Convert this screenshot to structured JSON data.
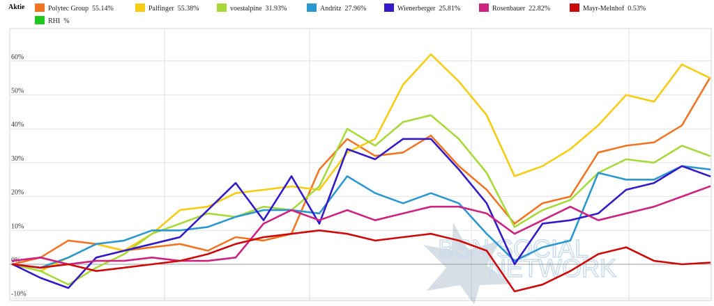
{
  "legend": {
    "title": "Aktie",
    "items": [
      {
        "name": "Polytec Group",
        "value": "55.14%",
        "color": "#f07422"
      },
      {
        "name": "Palfinger",
        "value": "55.38%",
        "color": "#f5cc12"
      },
      {
        "name": "voestalpine",
        "value": "31.93%",
        "color": "#a7d93a"
      },
      {
        "name": "Andritz",
        "value": "27.96%",
        "color": "#2b97d1"
      },
      {
        "name": "Wienerberger",
        "value": "25.81%",
        "color": "#3319c7"
      },
      {
        "name": "Rosenbauer",
        "value": "22.82%",
        "color": "#cc2280"
      },
      {
        "name": "Mayr-Melnhof",
        "value": "0.53%",
        "color": "#cc0a0a"
      },
      {
        "name": "RHI",
        "value": "%",
        "color": "#1fc81f"
      }
    ]
  },
  "watermark": {
    "line1": "BSN SOCIAL",
    "line2": "NETWORK"
  },
  "chart_data": {
    "type": "line",
    "ylim": [
      -10,
      70
    ],
    "yticks": [
      -10,
      0,
      10,
      20,
      30,
      40,
      50,
      60
    ],
    "ytick_labels": [
      "-10%",
      "0%",
      "10%",
      "20%",
      "30%",
      "40%",
      "50%",
      "60%"
    ],
    "grid": true,
    "legend_position": "top",
    "series": [
      {
        "name": "Polytec Group",
        "color": "#f07422",
        "x": [
          0,
          4,
          8,
          12,
          16,
          20,
          24,
          28,
          32,
          36,
          40,
          44,
          48,
          52,
          56,
          60,
          64,
          68,
          72,
          76,
          80,
          84,
          88,
          92,
          96,
          100
        ],
        "values": [
          0,
          2,
          7,
          6,
          4,
          5,
          6,
          4,
          8,
          7,
          9,
          28,
          37,
          32,
          33,
          38,
          29,
          22,
          12,
          18,
          20,
          33,
          35,
          36,
          41,
          55
        ]
      },
      {
        "name": "Palfinger",
        "color": "#f5cc12",
        "x": [
          0,
          4,
          8,
          12,
          16,
          20,
          24,
          28,
          32,
          36,
          40,
          44,
          48,
          52,
          56,
          60,
          64,
          68,
          72,
          76,
          80,
          84,
          88,
          92,
          96,
          100
        ],
        "values": [
          0,
          -2,
          2,
          6,
          4,
          9,
          16,
          17,
          21,
          22,
          23,
          22,
          33,
          37,
          53,
          62,
          54,
          44,
          26,
          29,
          34,
          41,
          50,
          48,
          59,
          55
        ]
      },
      {
        "name": "voestalpine",
        "color": "#a7d93a",
        "x": [
          0,
          4,
          8,
          12,
          16,
          20,
          24,
          28,
          32,
          36,
          40,
          44,
          48,
          52,
          56,
          60,
          64,
          68,
          72,
          76,
          80,
          84,
          88,
          92,
          96,
          100
        ],
        "values": [
          0,
          -2,
          -6,
          -1,
          3,
          9,
          12,
          15,
          14,
          17,
          16,
          23,
          40,
          35,
          42,
          44,
          37,
          27,
          11,
          16,
          19,
          27,
          31,
          30,
          35,
          32
        ]
      },
      {
        "name": "Andritz",
        "color": "#2b97d1",
        "x": [
          0,
          4,
          8,
          12,
          16,
          20,
          24,
          28,
          32,
          36,
          40,
          44,
          48,
          52,
          56,
          60,
          64,
          68,
          72,
          76,
          80,
          84,
          88,
          92,
          96,
          100
        ],
        "values": [
          0,
          -1,
          2,
          6,
          7,
          10,
          10,
          11,
          14,
          16,
          16,
          15,
          26,
          21,
          18,
          21,
          18,
          9,
          1,
          5,
          7,
          27,
          25,
          25,
          29,
          28
        ]
      },
      {
        "name": "Wienerberger",
        "color": "#3319c7",
        "x": [
          0,
          4,
          8,
          12,
          16,
          20,
          24,
          28,
          32,
          36,
          40,
          44,
          48,
          52,
          56,
          60,
          64,
          68,
          72,
          76,
          80,
          84,
          88,
          92,
          96,
          100
        ],
        "values": [
          0,
          -4,
          -7,
          2,
          4,
          6,
          8,
          16,
          24,
          13,
          26,
          12,
          34,
          31,
          37,
          37,
          28,
          18,
          0,
          12,
          13,
          15,
          22,
          24,
          29,
          26
        ]
      },
      {
        "name": "Rosenbauer",
        "color": "#cc2280",
        "x": [
          0,
          4,
          8,
          12,
          16,
          20,
          24,
          28,
          32,
          36,
          40,
          44,
          48,
          52,
          56,
          60,
          64,
          68,
          72,
          76,
          80,
          84,
          88,
          92,
          96,
          100
        ],
        "values": [
          1,
          2,
          0,
          1,
          1,
          2,
          1,
          1,
          2,
          12,
          16,
          13,
          16,
          13,
          15,
          17,
          17,
          15,
          9,
          13,
          17,
          13,
          15,
          17,
          20,
          23
        ]
      },
      {
        "name": "Mayr-Melnhof",
        "color": "#cc0a0a",
        "x": [
          0,
          4,
          8,
          12,
          16,
          20,
          24,
          28,
          32,
          36,
          40,
          44,
          48,
          52,
          56,
          60,
          64,
          68,
          72,
          76,
          80,
          84,
          88,
          92,
          96,
          100
        ],
        "values": [
          0,
          -1,
          0,
          -2,
          -1,
          0,
          1,
          3,
          6,
          8,
          9,
          10,
          9,
          7,
          8,
          9,
          7,
          4,
          -8,
          -6,
          -2,
          3,
          5,
          1,
          0,
          0.5
        ]
      },
      {
        "name": "RHI",
        "color": "#1fc81f",
        "x": [],
        "values": []
      }
    ]
  }
}
